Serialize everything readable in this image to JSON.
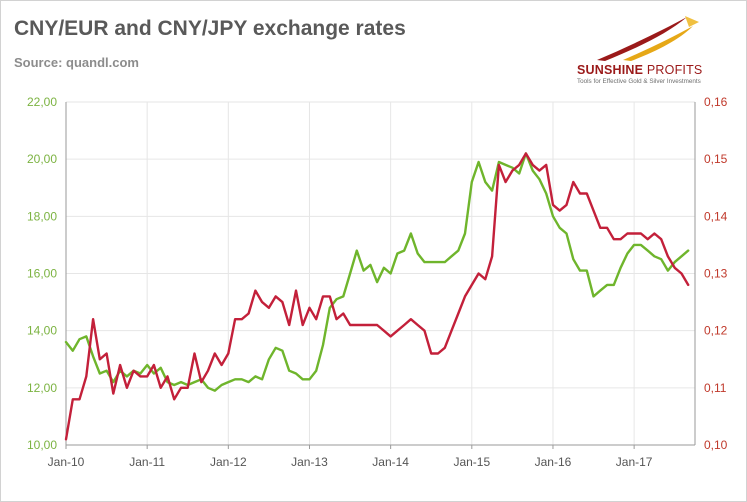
{
  "header": {
    "title": "CNY/EUR and CNY/JPY exchange rates",
    "subtitle": "Source: quandl.com"
  },
  "logo": {
    "name_part1": "SUNSHINE",
    "name_part2": " PROFITS",
    "tagline": "Tools for Effective Gold & Silver Investments",
    "colors": {
      "red": "#9b1a1a",
      "gold": "#e6a817"
    }
  },
  "chart_data": {
    "type": "line",
    "grid": true,
    "legend": "none",
    "xlim": [
      "2010-01",
      "2017-10"
    ],
    "x_ticks": [
      "Jan-10",
      "Jan-11",
      "Jan-12",
      "Jan-13",
      "Jan-14",
      "Jan-15",
      "Jan-16",
      "Jan-17"
    ],
    "y_left": {
      "lim": [
        10,
        22
      ],
      "ticks": [
        "10,00",
        "12,00",
        "14,00",
        "16,00",
        "18,00",
        "20,00",
        "22,00"
      ],
      "color": "#7cb342"
    },
    "y_right": {
      "lim": [
        0.1,
        0.16
      ],
      "ticks": [
        "0,10",
        "0,11",
        "0,12",
        "0,13",
        "0,14",
        "0,15",
        "0,16"
      ],
      "color": "#c0392b"
    },
    "series": [
      {
        "axis": "left",
        "color": "#6fb52c",
        "x": [
          "2010-01",
          "2010-02",
          "2010-03",
          "2010-04",
          "2010-05",
          "2010-06",
          "2010-07",
          "2010-08",
          "2010-09",
          "2010-10",
          "2010-11",
          "2010-12",
          "2011-01",
          "2011-02",
          "2011-03",
          "2011-04",
          "2011-05",
          "2011-06",
          "2011-07",
          "2011-08",
          "2011-09",
          "2011-10",
          "2011-11",
          "2011-12",
          "2012-01",
          "2012-02",
          "2012-03",
          "2012-04",
          "2012-05",
          "2012-06",
          "2012-07",
          "2012-08",
          "2012-09",
          "2012-10",
          "2012-11",
          "2012-12",
          "2013-01",
          "2013-02",
          "2013-03",
          "2013-04",
          "2013-05",
          "2013-06",
          "2013-07",
          "2013-08",
          "2013-09",
          "2013-10",
          "2013-11",
          "2013-12",
          "2014-01",
          "2014-02",
          "2014-03",
          "2014-04",
          "2014-05",
          "2014-06",
          "2014-07",
          "2014-08",
          "2014-09",
          "2014-10",
          "2014-11",
          "2014-12",
          "2015-01",
          "2015-02",
          "2015-03",
          "2015-04",
          "2015-05",
          "2015-06",
          "2015-07",
          "2015-08",
          "2015-09",
          "2015-10",
          "2015-11",
          "2015-12",
          "2016-01",
          "2016-02",
          "2016-03",
          "2016-04",
          "2016-05",
          "2016-06",
          "2016-07",
          "2016-08",
          "2016-09",
          "2016-10",
          "2016-11",
          "2016-12",
          "2017-01",
          "2017-02",
          "2017-03",
          "2017-04",
          "2017-05",
          "2017-06",
          "2017-07",
          "2017-08",
          "2017-09"
        ],
        "y": [
          13.6,
          13.3,
          13.7,
          13.8,
          13.1,
          12.5,
          12.6,
          12.2,
          12.6,
          12.4,
          12.6,
          12.5,
          12.8,
          12.5,
          12.7,
          12.2,
          12.1,
          12.2,
          12.1,
          12.2,
          12.3,
          12.0,
          11.9,
          12.1,
          12.2,
          12.3,
          12.3,
          12.2,
          12.4,
          12.3,
          13.0,
          13.4,
          13.3,
          12.6,
          12.5,
          12.3,
          12.3,
          12.6,
          13.5,
          14.8,
          15.1,
          15.2,
          16.0,
          16.8,
          16.1,
          16.3,
          15.7,
          16.2,
          16.0,
          16.7,
          16.8,
          17.4,
          16.7,
          16.4,
          16.4,
          16.4,
          16.4,
          16.6,
          16.8,
          17.4,
          19.2,
          19.9,
          19.2,
          18.9,
          19.9,
          19.8,
          19.7,
          19.5,
          20.2,
          19.6,
          19.3,
          18.8,
          18.0,
          17.6,
          17.4,
          16.5,
          16.1,
          16.1,
          15.2,
          15.4,
          15.6,
          15.6,
          16.2,
          16.7,
          17.0,
          17.0,
          16.8,
          16.6,
          16.5,
          16.1,
          16.4,
          16.6,
          16.8
        ]
      },
      {
        "axis": "right",
        "color": "#c3203a",
        "x": [
          "2010-01",
          "2010-02",
          "2010-03",
          "2010-04",
          "2010-05",
          "2010-06",
          "2010-07",
          "2010-08",
          "2010-09",
          "2010-10",
          "2010-11",
          "2010-12",
          "2011-01",
          "2011-02",
          "2011-03",
          "2011-04",
          "2011-05",
          "2011-06",
          "2011-07",
          "2011-08",
          "2011-09",
          "2011-10",
          "2011-11",
          "2011-12",
          "2012-01",
          "2012-02",
          "2012-03",
          "2012-04",
          "2012-05",
          "2012-06",
          "2012-07",
          "2012-08",
          "2012-09",
          "2012-10",
          "2012-11",
          "2012-12",
          "2013-01",
          "2013-02",
          "2013-03",
          "2013-04",
          "2013-05",
          "2013-06",
          "2013-07",
          "2013-08",
          "2013-09",
          "2013-10",
          "2013-11",
          "2013-12",
          "2014-01",
          "2014-02",
          "2014-03",
          "2014-04",
          "2014-05",
          "2014-06",
          "2014-07",
          "2014-08",
          "2014-09",
          "2014-10",
          "2014-11",
          "2014-12",
          "2015-01",
          "2015-02",
          "2015-03",
          "2015-04",
          "2015-05",
          "2015-06",
          "2015-07",
          "2015-08",
          "2015-09",
          "2015-10",
          "2015-11",
          "2015-12",
          "2016-01",
          "2016-02",
          "2016-03",
          "2016-04",
          "2016-05",
          "2016-06",
          "2016-07",
          "2016-08",
          "2016-09",
          "2016-10",
          "2016-11",
          "2016-12",
          "2017-01",
          "2017-02",
          "2017-03",
          "2017-04",
          "2017-05",
          "2017-06",
          "2017-07",
          "2017-08",
          "2017-09"
        ],
        "y": [
          0.101,
          0.108,
          0.108,
          0.112,
          0.122,
          0.115,
          0.116,
          0.109,
          0.114,
          0.11,
          0.113,
          0.112,
          0.112,
          0.114,
          0.11,
          0.112,
          0.108,
          0.11,
          0.11,
          0.116,
          0.111,
          0.113,
          0.116,
          0.114,
          0.116,
          0.122,
          0.122,
          0.123,
          0.127,
          0.125,
          0.124,
          0.126,
          0.125,
          0.121,
          0.127,
          0.121,
          0.124,
          0.122,
          0.126,
          0.126,
          0.122,
          0.123,
          0.121,
          0.121,
          0.121,
          0.121,
          0.121,
          0.12,
          0.119,
          0.12,
          0.121,
          0.122,
          0.121,
          0.12,
          0.116,
          0.116,
          0.117,
          0.12,
          0.123,
          0.126,
          0.128,
          0.13,
          0.129,
          0.133,
          0.149,
          0.146,
          0.148,
          0.149,
          0.151,
          0.149,
          0.148,
          0.149,
          0.142,
          0.141,
          0.142,
          0.146,
          0.144,
          0.144,
          0.141,
          0.138,
          0.138,
          0.136,
          0.136,
          0.137,
          0.137,
          0.137,
          0.136,
          0.137,
          0.136,
          0.133,
          0.131,
          0.13,
          0.128
        ]
      }
    ]
  }
}
